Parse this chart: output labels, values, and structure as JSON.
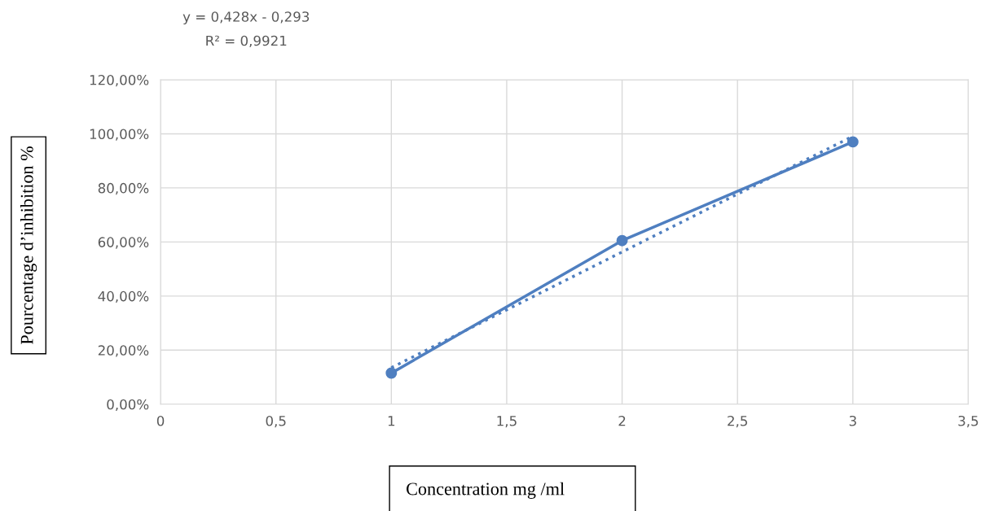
{
  "chart_data": {
    "type": "line",
    "xlabel": "Concentration mg /ml",
    "ylabel": "Pourcentage d’inhibition %",
    "annotations": [
      "y = 0,428x - 0,293",
      "R² = 0,9921"
    ],
    "series": [
      {
        "color": "#4f7fc0",
        "x": [
          1,
          2,
          3
        ],
        "values": [
          11.5,
          60.5,
          97
        ],
        "marker": "circle",
        "line_style": "solid"
      },
      {
        "color": "#4f7fc0",
        "x": [
          1,
          3
        ],
        "values": [
          13.5,
          99.1
        ],
        "marker": "none",
        "line_style": "dotted"
      }
    ],
    "xlim": [
      0,
      3.5
    ],
    "xticks": [
      0,
      {
        "value": 0.5,
        "label": "0,5"
      },
      1,
      {
        "value": 1.5,
        "label": "1,5"
      },
      2,
      {
        "value": 2.5,
        "label": "2,5"
      },
      3,
      {
        "value": 3.5,
        "label": "3,5"
      }
    ],
    "ylim": [
      0,
      120
    ],
    "yticks": [
      {
        "value": 0,
        "label": "0,00%"
      },
      {
        "value": 20,
        "label": "20,00%"
      },
      {
        "value": 40,
        "label": "40,00%"
      },
      {
        "value": 60,
        "label": "60,00%"
      },
      {
        "value": 80,
        "label": "80,00%"
      },
      {
        "value": 100,
        "label": "100,00%"
      },
      {
        "value": 120,
        "label": "120,00%"
      }
    ],
    "grid": true
  }
}
